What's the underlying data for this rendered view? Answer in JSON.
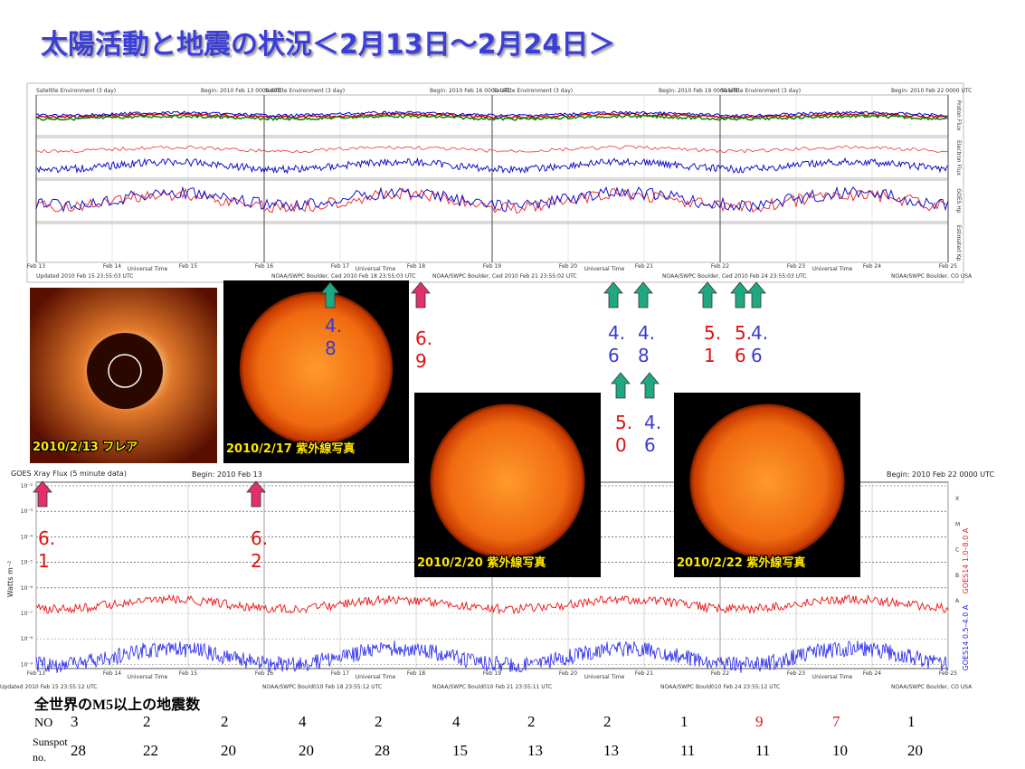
{
  "title": "太陽活動と地震の状況＜2月13日～2月24日＞",
  "satellite_panel": {
    "headers": [
      "Satellite Environment (3 day)",
      "Begin: 2010 Feb 13 0000 UTC",
      "Satellite Environment (3 day)",
      "Begin: 2010 Feb 16 0000 UTC",
      "Satellite Environment (3 day)",
      "Begin: 2010 Feb 19 0000 UTC",
      "Satellite Environment (3 day)",
      "Begin: 2010 Feb 22 0000 UTC"
    ],
    "side_labels": [
      "Proton Flux",
      "Electron Flux",
      "GOES Hp",
      "Estimated Kp"
    ],
    "dates": [
      "Feb 13",
      "Feb 14",
      "Feb 15",
      "Feb 16",
      "Feb 17",
      "Feb 18",
      "Feb 19",
      "Feb 20",
      "Feb 21",
      "Feb 22",
      "Feb 23",
      "Feb 24",
      "Feb 25"
    ],
    "axis_label": "Universal Time",
    "footers": [
      "Updated 2010 Feb 15 23:55:03 UTC",
      "NOAA/SWPC Boulder, Ced 2010 Feb 18 23:55:03 UTC",
      "NOAA/SWPC Boulder, Ced 2010 Feb 21 23:55:02 UTC",
      "NOAA/SWPC Boulder, Ced 2010 Feb 24 23:55:03 UTC",
      "NOAA/SWPC Boulder, CO USA"
    ]
  },
  "images": [
    {
      "caption": "2010/2/13 フレア"
    },
    {
      "caption": "2010/2/17 紫外線写真"
    },
    {
      "caption": "2010/2/20 紫外線写真"
    },
    {
      "caption": "2010/2/22 紫外線写真"
    }
  ],
  "earthquakes": [
    {
      "magnitude": "4.8",
      "color": "#3a3ad0"
    },
    {
      "magnitude": "6.9",
      "color": "#e01010"
    },
    {
      "magnitude": "4.6",
      "color": "#3a3ad0"
    },
    {
      "magnitude": "4.8",
      "color": "#3a3ad0"
    },
    {
      "magnitude": "5.1",
      "color": "#e01010"
    },
    {
      "magnitude": "5.6",
      "color": "#e01010"
    },
    {
      "magnitude": "4.6",
      "color": "#3a3ad0"
    },
    {
      "magnitude": "6.1",
      "color": "#e01010"
    },
    {
      "magnitude": "6.2",
      "color": "#e01010"
    },
    {
      "magnitude": "5.0",
      "color": "#e01010"
    },
    {
      "magnitude": "4.6",
      "color": "#3a3ad0"
    }
  ],
  "xray_panel": {
    "title": "GOES Xray Flux (5 minute data)",
    "headers": [
      "Begin: 2010 Feb 13",
      "Begin: 2010 Feb 22 0000 UTC"
    ],
    "y_label": "Watts m⁻²",
    "yticks": [
      "10⁻²",
      "10⁻³",
      "10⁻⁴",
      "10⁻⁵",
      "10⁻⁶",
      "10⁻⁷",
      "10⁻⁸",
      "10⁻⁹"
    ],
    "classes": [
      "X",
      "M",
      "C",
      "B",
      "A"
    ],
    "legend": [
      "GOES14 1.0–8.0 A",
      "GOES14 0.5–4.0 A"
    ],
    "dates": [
      "Feb 13",
      "Feb 14",
      "Feb 15",
      "Feb 16",
      "Feb 17",
      "Feb 18",
      "Feb 19",
      "Feb 20",
      "Feb 21",
      "Feb 22",
      "Feb 23",
      "Feb 24",
      "Feb 25"
    ],
    "axis_label": "Universal Time",
    "footers": [
      "Updated 2010 Feb 15 23:55:12 UTC",
      "NOAA/SWPC Bould010 Feb 18 23:55:12 UTC",
      "NOAA/SWPC Bould010 Feb 21 23:55:11 UTC",
      "NOAA/SWPC Bould010 Feb 24 23:55:12 UTC",
      "NOAA/SWPC Boulder, CO USA"
    ]
  },
  "table": {
    "title": "全世界のM5以上の地震数",
    "rows": [
      {
        "label": "NO",
        "values": [
          3,
          2,
          2,
          4,
          2,
          4,
          2,
          2,
          1,
          9,
          7,
          1
        ],
        "colors": [
          "#000",
          "#000",
          "#000",
          "#000",
          "#000",
          "#000",
          "#000",
          "#000",
          "#000",
          "#e01010",
          "#e01010",
          "#000"
        ]
      },
      {
        "label": "Sunspot no.",
        "values": [
          28,
          22,
          20,
          20,
          28,
          15,
          13,
          13,
          11,
          11,
          10,
          20
        ]
      }
    ]
  }
}
